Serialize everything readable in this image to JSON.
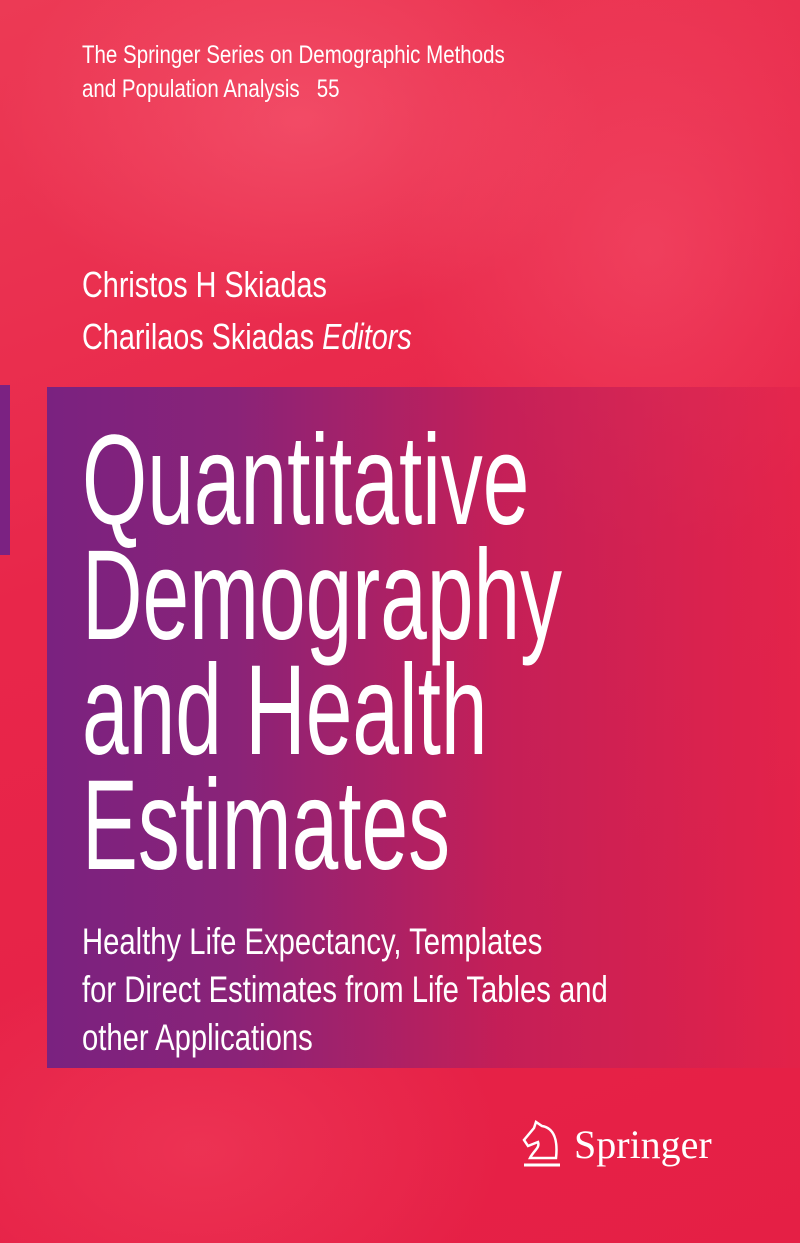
{
  "series": {
    "line1": "The Springer Series on Demographic Methods",
    "line2": "and Population Analysis",
    "number": "55"
  },
  "authors": [
    {
      "name": "Christos H Skiadas"
    },
    {
      "name": "Charilaos Skiadas",
      "role": "Editors"
    }
  ],
  "title": {
    "lines": [
      "Quantitative",
      "Demography",
      "and Health",
      "Estimates"
    ]
  },
  "subtitle": {
    "lines": [
      "Healthy Life Expectancy, Templates",
      "for Direct Estimates from Life Tables and",
      "other Applications"
    ]
  },
  "publisher": {
    "name": "Springer",
    "logo_icon": "chess-knight-icon"
  },
  "colors": {
    "background": "#e5234a",
    "band": "#7a2280"
  }
}
